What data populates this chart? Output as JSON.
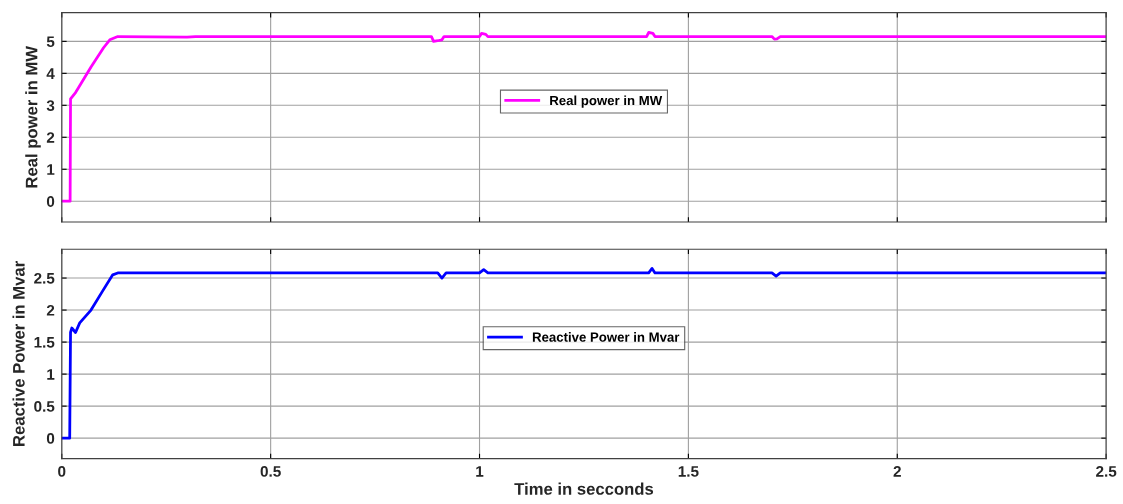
{
  "chart_data": [
    {
      "type": "line",
      "ylabel": "Real power in MW",
      "xlim": [
        0,
        2.5
      ],
      "xticks": [
        0,
        0.5,
        1,
        1.5,
        2,
        2.5
      ],
      "ylim": [
        -0.65,
        5.9
      ],
      "yticks": [
        0,
        1,
        2,
        3,
        4,
        5
      ],
      "tick_labels": "y",
      "grid": true,
      "legend": "center",
      "line_style": "solid",
      "series": [
        {
          "name": "Real power in MW",
          "color": "#ff00ff",
          "x": [
            0,
            0.02,
            0.021,
            0.033,
            0.04,
            0.07,
            0.1,
            0.115,
            0.134,
            0.3,
            0.32,
            0.6,
            0.885,
            0.89,
            0.9,
            0.91,
            0.915,
            1.0,
            1.005,
            1.015,
            1.02,
            1.4,
            1.405,
            1.415,
            1.42,
            1.7,
            1.706,
            1.712,
            1.72,
            2.5
          ],
          "values": [
            0,
            0,
            3.2,
            3.4,
            3.55,
            4.2,
            4.8,
            5.05,
            5.15,
            5.13,
            5.15,
            5.15,
            5.15,
            5.0,
            5.02,
            5.05,
            5.15,
            5.15,
            5.25,
            5.22,
            5.15,
            5.15,
            5.28,
            5.25,
            5.15,
            5.15,
            5.07,
            5.08,
            5.15,
            5.15
          ]
        }
      ]
    },
    {
      "type": "line",
      "xlabel": "Time in secconds",
      "ylabel": "Reactive Power in Mvar",
      "xlim": [
        0,
        2.5
      ],
      "xticks": [
        0,
        0.5,
        1,
        1.5,
        2,
        2.5
      ],
      "ylim": [
        -0.32,
        2.95
      ],
      "yticks": [
        0,
        0.5,
        1,
        1.5,
        2,
        2.5
      ],
      "grid": true,
      "legend": "center",
      "line_style": "solid",
      "series": [
        {
          "name": "Reactive Power in Mvar",
          "color": "#0000ff",
          "x": [
            0,
            0.019,
            0.021,
            0.024,
            0.033,
            0.043,
            0.07,
            0.098,
            0.122,
            0.134,
            0.3,
            0.9,
            0.91,
            0.92,
            1.0,
            1.01,
            1.02,
            1.405,
            1.413,
            1.42,
            1.7,
            1.71,
            1.72,
            2.5
          ],
          "values": [
            0,
            0,
            1.65,
            1.72,
            1.65,
            1.8,
            2.0,
            2.3,
            2.55,
            2.58,
            2.58,
            2.58,
            2.5,
            2.58,
            2.58,
            2.63,
            2.58,
            2.58,
            2.65,
            2.58,
            2.58,
            2.53,
            2.58,
            2.58
          ]
        }
      ]
    }
  ]
}
